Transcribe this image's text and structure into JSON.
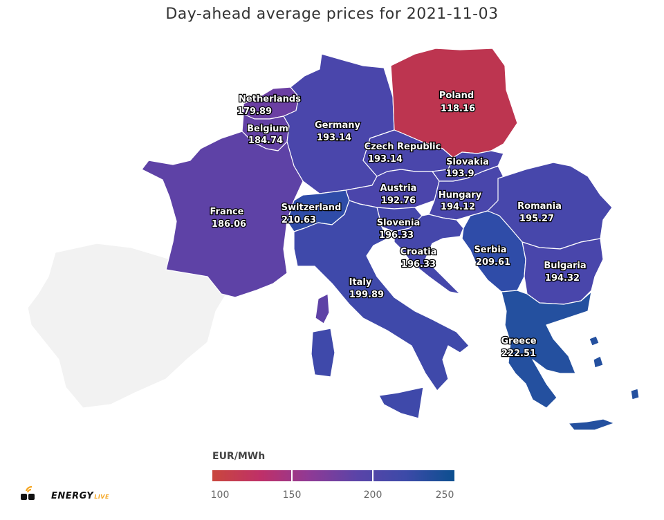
{
  "title": "Day-ahead average prices for 2021-11-03",
  "countries": [
    {
      "id": "netherlands",
      "name": "Netherlands",
      "value": "179.89",
      "color": "#6b3fa3"
    },
    {
      "id": "belgium",
      "name": "Belgium",
      "value": "184.74",
      "color": "#6341a5"
    },
    {
      "id": "germany",
      "name": "Germany",
      "value": "193.14",
      "color": "#4a46ab"
    },
    {
      "id": "poland",
      "name": "Poland",
      "value": "118.16",
      "color": "#bd3550"
    },
    {
      "id": "czech",
      "name": "Czech Republic",
      "value": "193.14",
      "color": "#4a46ab"
    },
    {
      "id": "slovakia",
      "name": "Slovakia",
      "value": "193.9",
      "color": "#4a46ab"
    },
    {
      "id": "austria",
      "name": "Austria",
      "value": "192.76",
      "color": "#4b45ab"
    },
    {
      "id": "hungary",
      "name": "Hungary",
      "value": "194.12",
      "color": "#4946ab"
    },
    {
      "id": "romania",
      "name": "Romania",
      "value": "195.27",
      "color": "#4747ab"
    },
    {
      "id": "france",
      "name": "France",
      "value": "186.06",
      "color": "#5e42a6"
    },
    {
      "id": "switzerland",
      "name": "Switzerland",
      "value": "210.63",
      "color": "#2f4ca8"
    },
    {
      "id": "slovenia",
      "name": "Slovenia",
      "value": "196.33",
      "color": "#4547ab"
    },
    {
      "id": "croatia",
      "name": "Croatia",
      "value": "196.33",
      "color": "#4547ab"
    },
    {
      "id": "serbia",
      "name": "Serbia",
      "value": "209.61",
      "color": "#2f4ca8"
    },
    {
      "id": "bulgaria",
      "name": "Bulgaria",
      "value": "194.32",
      "color": "#4946ab"
    },
    {
      "id": "italy",
      "name": "Italy",
      "value": "199.89",
      "color": "#3f49aa"
    },
    {
      "id": "greece",
      "name": "Greece",
      "value": "222.51",
      "color": "#24509f"
    }
  ],
  "no_data_color": "#f2f2f2",
  "legend": {
    "title": "EUR/MWh",
    "ticks": [
      "100",
      "150",
      "200",
      "250"
    ],
    "min": 100,
    "max": 250
  },
  "logo": {
    "brand": "ENERGY",
    "suffix": "LIVE"
  }
}
